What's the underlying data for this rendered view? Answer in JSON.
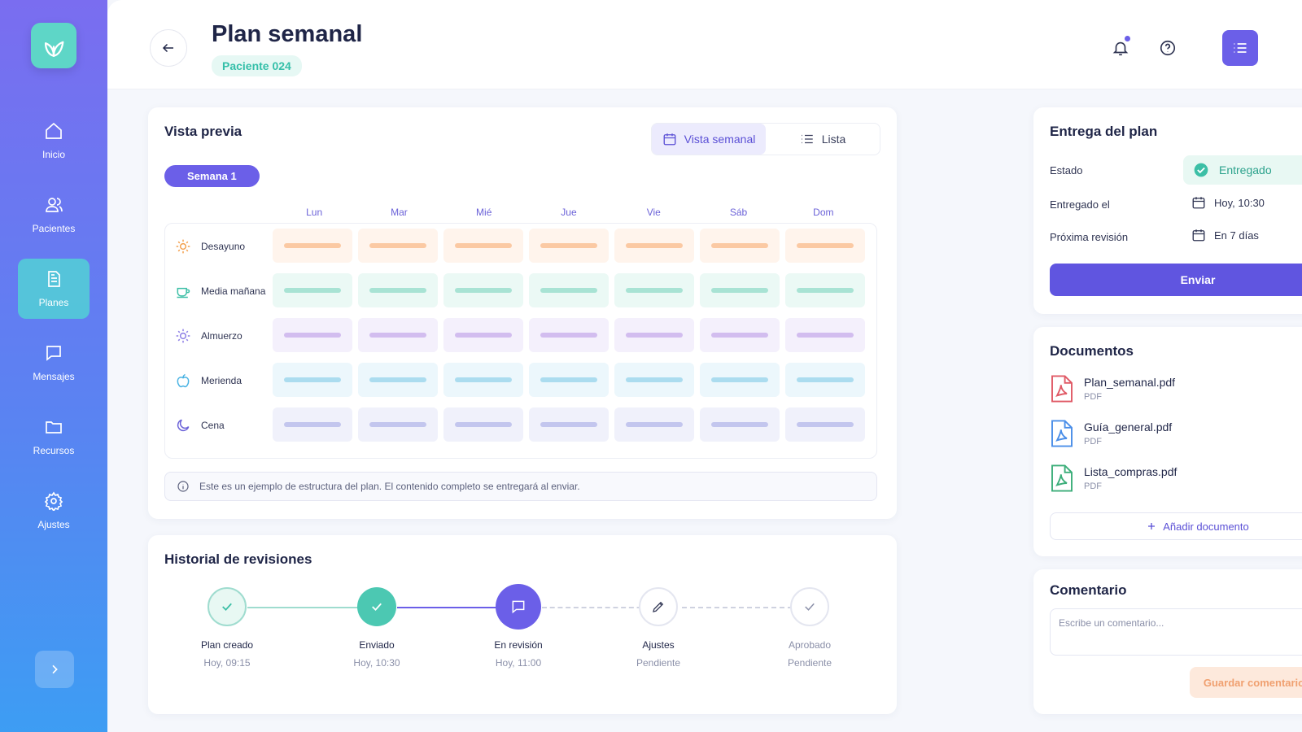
{
  "sidebar": {
    "items": [
      {
        "label": "Inicio",
        "icon": "home-icon"
      },
      {
        "label": "Pacientes",
        "icon": "users-icon"
      },
      {
        "label": "Planes",
        "icon": "document-icon",
        "active": true
      },
      {
        "label": "Mensajes",
        "icon": "message-icon"
      },
      {
        "label": "Recursos",
        "icon": "folder-icon"
      },
      {
        "label": "Ajustes",
        "icon": "gear-icon"
      }
    ]
  },
  "header": {
    "title": "Plan semanal",
    "patient_tag": "Paciente 024"
  },
  "preview": {
    "title": "Vista previa",
    "toggle": {
      "weekly": "Vista semanal",
      "list": "Lista"
    },
    "week": "Semana 1",
    "days": [
      "Lun",
      "Mar",
      "Mié",
      "Jue",
      "Vie",
      "Sáb",
      "Dom"
    ],
    "meals": [
      {
        "label": "Desayuno",
        "icon": "sun-icon"
      },
      {
        "label": "Media mañana",
        "icon": "cup-icon"
      },
      {
        "label": "Almuerzo",
        "icon": "sun-icon"
      },
      {
        "label": "Merienda",
        "icon": "apple-icon"
      },
      {
        "label": "Cena",
        "icon": "moon-icon"
      }
    ],
    "info": "Este es un ejemplo de estructura del plan. El contenido completo se entregará al enviar."
  },
  "history": {
    "title": "Historial de revisiones",
    "steps": [
      {
        "label": "Plan creado",
        "time": "Hoy, 09:15"
      },
      {
        "label": "Enviado",
        "time": "Hoy, 10:30"
      },
      {
        "label": "En revisión",
        "time": "Hoy, 11:00"
      },
      {
        "label": "Ajustes",
        "time": "Pendiente"
      },
      {
        "label": "Aprobado",
        "time": "Pendiente"
      }
    ]
  },
  "delivery": {
    "title": "Entrega del plan",
    "status_label": "Estado",
    "status_value": "Entregado",
    "delivered_label": "Entregado el",
    "delivered_value": "Hoy, 10:30",
    "review_label": "Próxima revisión",
    "review_value": "En 7 días",
    "send_label": "Enviar"
  },
  "documents": {
    "title": "Documentos",
    "items": [
      {
        "name": "Plan_semanal.pdf",
        "type": "PDF"
      },
      {
        "name": "Guía_general.pdf",
        "type": "PDF"
      },
      {
        "name": "Lista_compras.pdf",
        "type": "PDF"
      }
    ],
    "add_label": "Añadir documento"
  },
  "comment": {
    "title": "Comentario",
    "placeholder": "Escribe un comentario...",
    "save_label": "Guardar comentario"
  },
  "colors": {
    "accent": "#6055e0",
    "teal": "#5ed6c7",
    "success": "#2ca28c"
  }
}
